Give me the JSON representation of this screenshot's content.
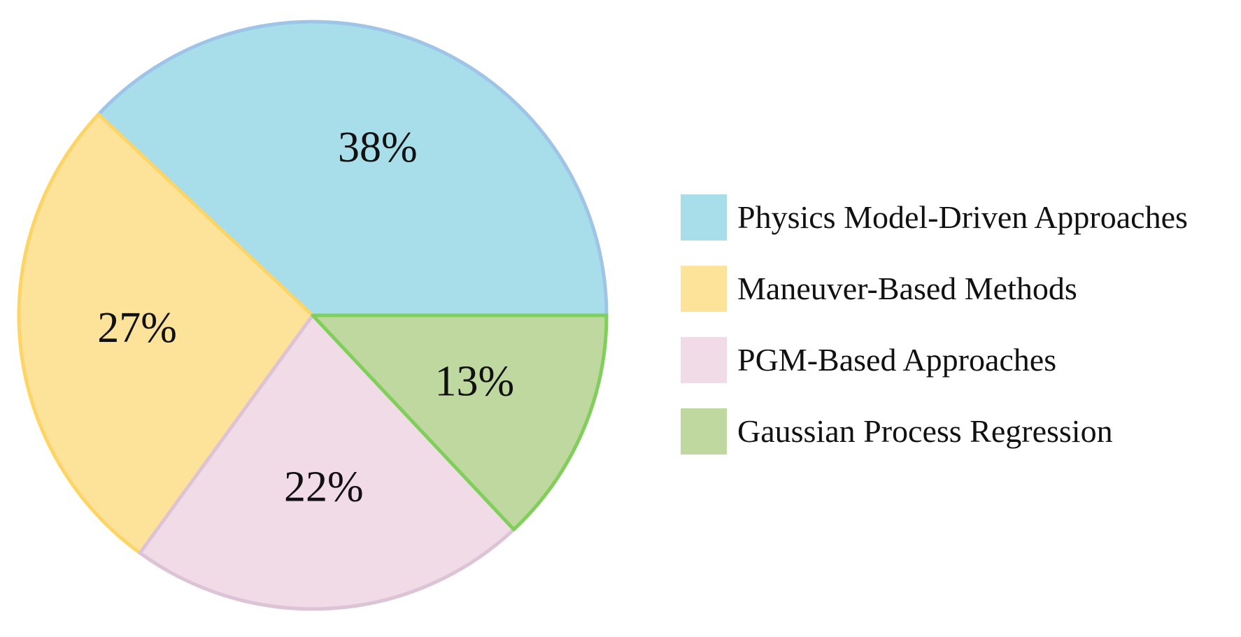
{
  "chart_data": {
    "type": "pie",
    "title": "",
    "legend_position": "right",
    "slices": [
      {
        "name": "Physics Model-Driven Approaches",
        "value": 38,
        "label": "38%",
        "color": "#a8dee9",
        "border": "#9ec4e8"
      },
      {
        "name": "Maneuver-Based Methods",
        "value": 27,
        "label": "27%",
        "color": "#fde39a",
        "border": "#fdd566"
      },
      {
        "name": "PGM-Based Approaches",
        "value": 22,
        "label": "22%",
        "color": "#f0dbe7",
        "border": "#dcc3d6"
      },
      {
        "name": "Gaussian Process Regression",
        "value": 13,
        "label": "13%",
        "color": "#bed89f",
        "border": "#7fcf5a"
      }
    ]
  }
}
